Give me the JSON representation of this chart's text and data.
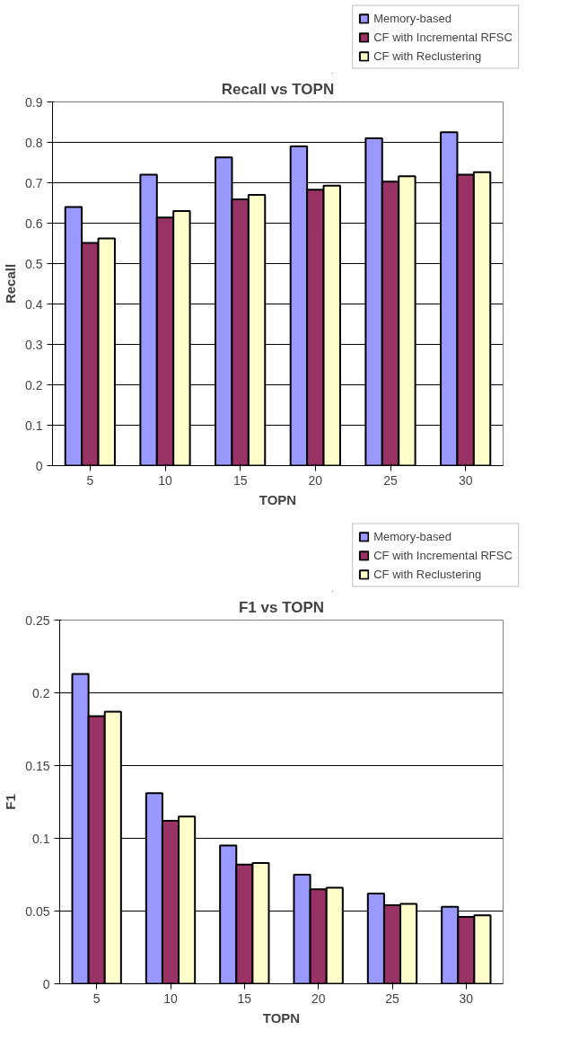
{
  "chart_data": [
    {
      "type": "bar",
      "title": "Recall vs TOPN",
      "xlabel": "TOPN",
      "ylabel": "Recall",
      "categories": [
        "5",
        "10",
        "15",
        "20",
        "25",
        "30"
      ],
      "series": [
        {
          "name": "Memory-based",
          "color": "#9999ff",
          "values": [
            0.64,
            0.72,
            0.763,
            0.79,
            0.81,
            0.825
          ]
        },
        {
          "name": "CF with Incremental RFSC",
          "color": "#993366",
          "values": [
            0.551,
            0.614,
            0.659,
            0.683,
            0.703,
            0.72
          ]
        },
        {
          "name": "CF with Reclustering",
          "color": "#ffffcc",
          "values": [
            0.562,
            0.63,
            0.67,
            0.693,
            0.716,
            0.726
          ]
        }
      ],
      "ylim": [
        0,
        0.9
      ],
      "yticks": [
        0,
        0.1,
        0.2,
        0.3,
        0.4,
        0.5,
        0.6,
        0.7,
        0.8,
        0.9
      ],
      "grid": "y",
      "legend": "top right"
    },
    {
      "type": "bar",
      "title": "F1 vs TOPN",
      "xlabel": "TOPN",
      "ylabel": "F1",
      "categories": [
        "5",
        "10",
        "15",
        "20",
        "25",
        "30"
      ],
      "series": [
        {
          "name": "Memory-based",
          "color": "#9999ff",
          "values": [
            0.213,
            0.131,
            0.095,
            0.075,
            0.062,
            0.053
          ]
        },
        {
          "name": "CF with Incremental RFSC",
          "color": "#993366",
          "values": [
            0.184,
            0.112,
            0.082,
            0.065,
            0.054,
            0.046
          ]
        },
        {
          "name": "CF with Reclustering",
          "color": "#ffffcc",
          "values": [
            0.187,
            0.115,
            0.083,
            0.066,
            0.055,
            0.047
          ]
        }
      ],
      "ylim": [
        0,
        0.25
      ],
      "yticks": [
        0,
        0.05,
        0.1,
        0.15,
        0.2,
        0.25
      ],
      "grid": "y",
      "legend": "top right"
    }
  ]
}
